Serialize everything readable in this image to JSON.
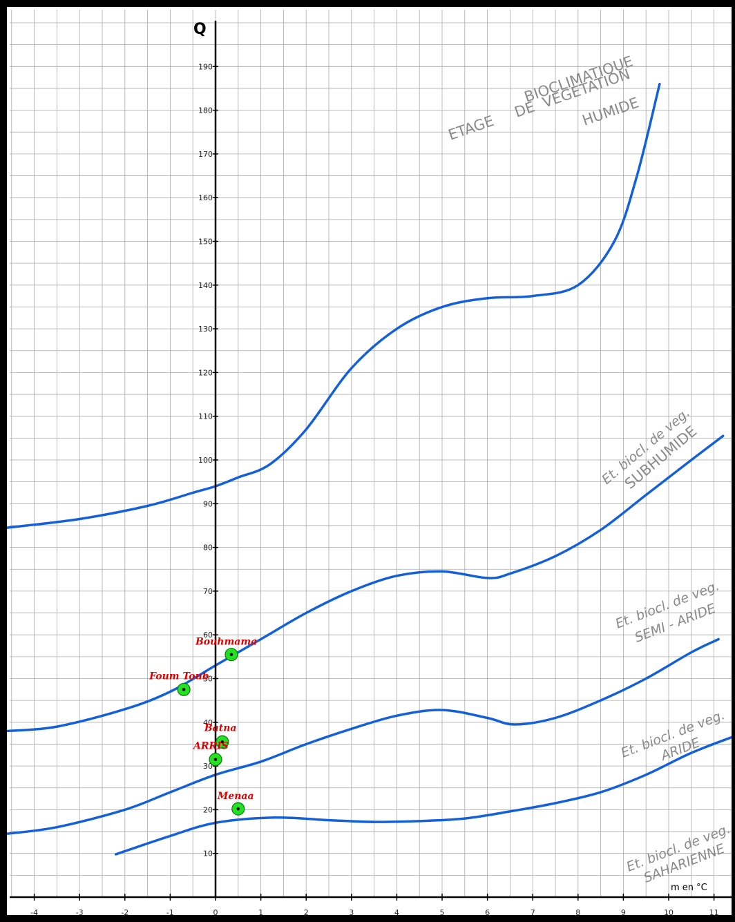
{
  "chart_data": {
    "type": "line",
    "title": "",
    "ylabel": "Q",
    "xlabel": "m en °C",
    "xlim": [
      -4.6,
      11.5
    ],
    "ylim": [
      0,
      200
    ],
    "grid": true,
    "x_ticks": [
      -4,
      -3,
      -2,
      -1,
      0,
      1,
      2,
      3,
      4,
      5,
      6,
      7,
      8,
      9,
      10,
      11
    ],
    "y_ticks": [
      10,
      20,
      30,
      40,
      50,
      60,
      70,
      80,
      90,
      100,
      110,
      120,
      130,
      140,
      150,
      160,
      170,
      180,
      190
    ],
    "series": [
      {
        "name": "",
        "values": [
          [
            -4.6,
            84.5
          ],
          [
            -3,
            86.5
          ],
          [
            -1.5,
            89.5
          ],
          [
            -0.5,
            92.5
          ],
          [
            0,
            94
          ],
          [
            0.5,
            96
          ],
          [
            1.2,
            99
          ],
          [
            2,
            107
          ],
          [
            3,
            121
          ],
          [
            4,
            130
          ],
          [
            5,
            135
          ],
          [
            6,
            137
          ],
          [
            7,
            137.5
          ],
          [
            8,
            140
          ],
          [
            8.8,
            150
          ],
          [
            9.3,
            165
          ],
          [
            9.8,
            186
          ]
        ]
      },
      {
        "name": "",
        "values": [
          [
            -4.6,
            38
          ],
          [
            -3.5,
            39
          ],
          [
            -2,
            43
          ],
          [
            -1,
            47
          ],
          [
            0,
            53
          ],
          [
            1,
            59
          ],
          [
            2,
            65
          ],
          [
            3,
            70
          ],
          [
            4,
            73.5
          ],
          [
            5,
            74.5
          ],
          [
            6,
            73
          ],
          [
            6.5,
            74
          ],
          [
            7.5,
            78
          ],
          [
            8.5,
            84
          ],
          [
            9.5,
            92
          ],
          [
            10.5,
            100
          ],
          [
            11.2,
            105.5
          ]
        ]
      },
      {
        "name": "",
        "values": [
          [
            -4.6,
            14.5
          ],
          [
            -3.5,
            16
          ],
          [
            -2,
            20
          ],
          [
            -1,
            24
          ],
          [
            0,
            28
          ],
          [
            1,
            31
          ],
          [
            2,
            35
          ],
          [
            3,
            38.5
          ],
          [
            4,
            41.5
          ],
          [
            5,
            42.8
          ],
          [
            6,
            41
          ],
          [
            6.6,
            39.5
          ],
          [
            7.5,
            41
          ],
          [
            8.5,
            45
          ],
          [
            9.5,
            50
          ],
          [
            10.5,
            56
          ],
          [
            11.1,
            59
          ]
        ]
      },
      {
        "name": "",
        "values": [
          [
            -2.2,
            9.8
          ],
          [
            -1,
            14
          ],
          [
            0,
            17
          ],
          [
            1.3,
            18.2
          ],
          [
            2.5,
            17.6
          ],
          [
            3.5,
            17.2
          ],
          [
            4.5,
            17.4
          ],
          [
            5.5,
            18
          ],
          [
            6.5,
            19.6
          ],
          [
            7.5,
            21.5
          ],
          [
            8.5,
            24
          ],
          [
            9.5,
            28
          ],
          [
            10.5,
            33
          ],
          [
            11.5,
            37
          ]
        ]
      }
    ],
    "stations": [
      {
        "name": "Bouhmama",
        "x": 0.35,
        "y": 55.5
      },
      {
        "name": "Foum Toub",
        "x": -0.7,
        "y": 47.5
      },
      {
        "name": "Batna",
        "x": 0.15,
        "y": 35.5
      },
      {
        "name": "ARRIS",
        "x": 0.0,
        "y": 31.5
      },
      {
        "name": "Menaa",
        "x": 0.5,
        "y": 20.2
      }
    ],
    "zones": [
      {
        "lines": [
          "BIOCLIMATIQUE",
          "ETAGE     DE  VEGETATION",
          "HUMIDE"
        ]
      },
      {
        "lines": [
          "Et. biocl. de veg.",
          "SUBHUMIDE"
        ]
      },
      {
        "lines": [
          "Et. biocl. de veg.",
          "SEMI - ARIDE"
        ]
      },
      {
        "lines": [
          "Et. biocl. de veg.",
          "ARIDE"
        ]
      },
      {
        "lines": [
          "Et. biocl. de veg.",
          "SAHARIENNE"
        ]
      }
    ],
    "colors": {
      "curve": "#1460d9",
      "station_fill": "#22e022",
      "station_label": "#e00000",
      "grid": "#a9a9a9",
      "zone_label": "#8a8a8a"
    }
  }
}
